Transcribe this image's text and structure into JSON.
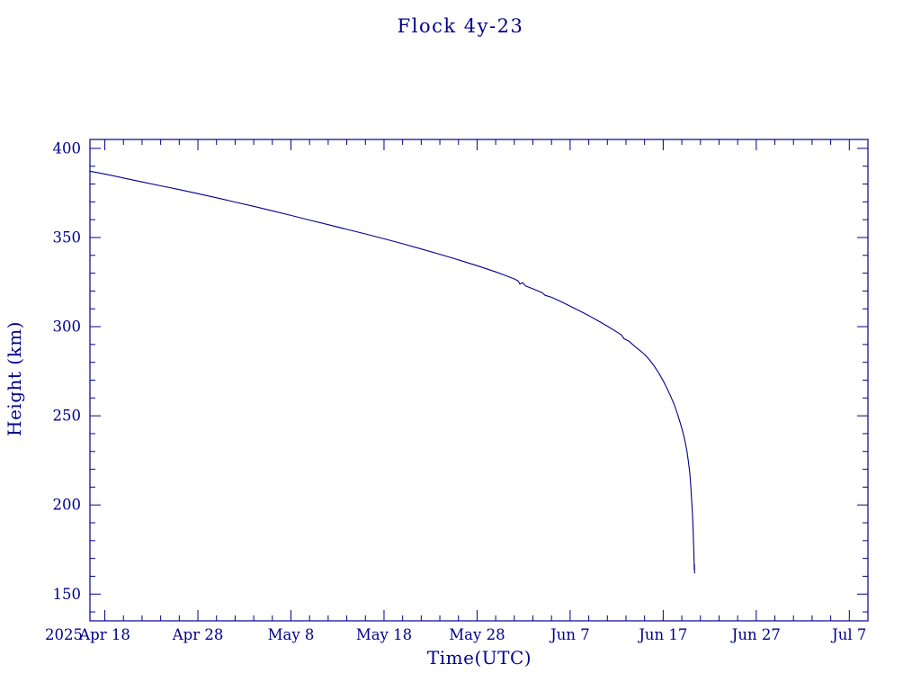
{
  "chart_data": {
    "type": "line",
    "title": "Flock 4y-23",
    "xlabel": "Time(UTC)",
    "ylabel": "Height (km)",
    "year_label": "2025",
    "line_color": "#00008b",
    "background_color": "#ffffff",
    "xlim_days": [
      -1.6,
      82
    ],
    "ylim": [
      135,
      405
    ],
    "x_major_step": 10,
    "x_minor_step": 2,
    "y_major_step": 50,
    "y_minor_step": 10,
    "x_unit": "days since first labeled tick (2025 Apr 18)",
    "y_unit": "km",
    "grid": false,
    "legend": "none",
    "x_ticks": [
      {
        "day": 0,
        "label": "Apr 18"
      },
      {
        "day": 10,
        "label": "Apr 28"
      },
      {
        "day": 20,
        "label": "May 8"
      },
      {
        "day": 30,
        "label": "May 18"
      },
      {
        "day": 40,
        "label": "May 28"
      },
      {
        "day": 50,
        "label": "Jun 7"
      },
      {
        "day": 60,
        "label": "Jun 17"
      },
      {
        "day": 70,
        "label": "Jun 27"
      },
      {
        "day": 80,
        "label": "Jul 7"
      }
    ],
    "y_ticks": [
      150,
      200,
      250,
      300,
      350,
      400
    ],
    "series": [
      {
        "name": "Flock 4y-23 orbital height",
        "points": [
          [
            -1.6,
            387.2
          ],
          [
            0,
            385.6
          ],
          [
            2,
            383.4
          ],
          [
            4,
            381.2
          ],
          [
            6,
            379.0
          ],
          [
            8,
            376.9
          ],
          [
            10,
            374.6
          ],
          [
            12,
            372.3
          ],
          [
            14,
            369.9
          ],
          [
            16,
            367.5
          ],
          [
            18,
            365.0
          ],
          [
            20,
            362.4
          ],
          [
            22,
            359.8
          ],
          [
            24,
            357.2
          ],
          [
            26,
            354.6
          ],
          [
            28,
            352.0
          ],
          [
            30,
            349.3
          ],
          [
            32,
            346.5
          ],
          [
            34,
            343.6
          ],
          [
            36,
            340.6
          ],
          [
            38,
            337.5
          ],
          [
            40,
            334.2
          ],
          [
            41,
            332.5
          ],
          [
            42,
            330.7
          ],
          [
            43,
            328.8
          ],
          [
            44,
            326.8
          ],
          [
            44.4,
            325.7
          ],
          [
            44.6,
            323.9
          ],
          [
            44.9,
            324.7
          ],
          [
            45.2,
            322.9
          ],
          [
            46,
            321.2
          ],
          [
            47,
            319.0
          ],
          [
            47.3,
            317.6
          ],
          [
            48,
            316.5
          ],
          [
            49,
            314.1
          ],
          [
            50,
            311.5
          ],
          [
            51,
            308.9
          ],
          [
            52,
            306.2
          ],
          [
            53,
            303.3
          ],
          [
            54,
            300.3
          ],
          [
            55,
            297.1
          ],
          [
            55.5,
            295.4
          ],
          [
            55.8,
            293.2
          ],
          [
            56.3,
            291.9
          ],
          [
            57,
            288.7
          ],
          [
            57.5,
            286.6
          ],
          [
            58,
            284.4
          ],
          [
            58.5,
            281.6
          ],
          [
            59,
            278.2
          ],
          [
            59.5,
            274.2
          ],
          [
            60,
            269.6
          ],
          [
            60.4,
            265.5
          ],
          [
            60.8,
            261.0
          ],
          [
            61.2,
            256.1
          ],
          [
            61.5,
            251.6
          ],
          [
            61.8,
            246.6
          ],
          [
            62.1,
            241.1
          ],
          [
            62.35,
            235.6
          ],
          [
            62.55,
            230.1
          ],
          [
            62.7,
            224.6
          ],
          [
            62.85,
            218.1
          ],
          [
            62.95,
            211.6
          ],
          [
            63.05,
            203.6
          ],
          [
            63.15,
            194.1
          ],
          [
            63.22,
            185.1
          ],
          [
            63.28,
            176.1
          ],
          [
            63.32,
            168.1
          ],
          [
            63.34,
            163.6
          ],
          [
            63.36,
            166.6
          ],
          [
            63.38,
            161.6
          ]
        ]
      }
    ]
  }
}
